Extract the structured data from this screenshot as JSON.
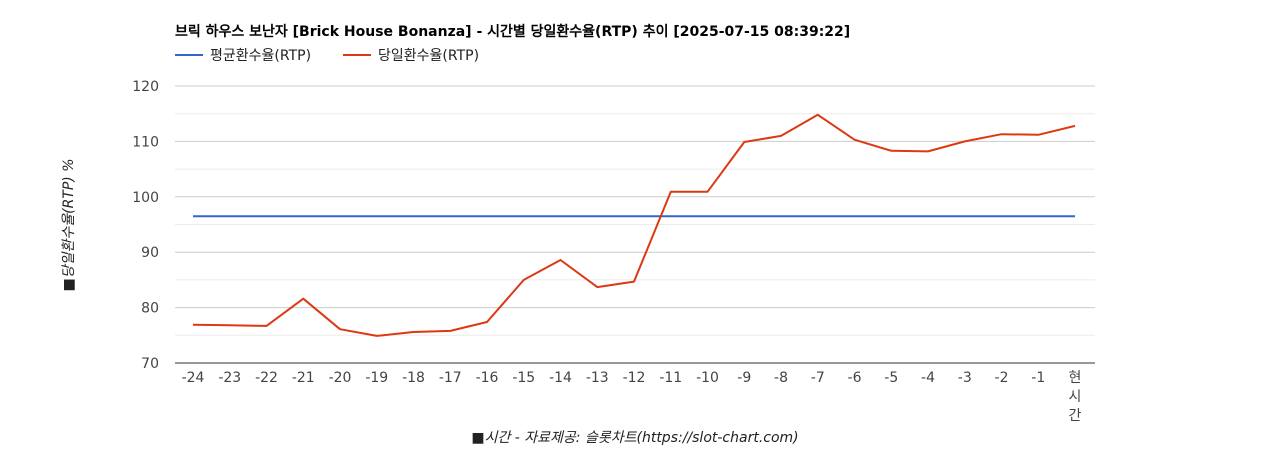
{
  "chart_data": {
    "type": "line",
    "title": "브릭 하우스 보난자 [Brick House Bonanza] - 시간별 당일환수율(RTP) 추이 [2025-07-15 08:39:22]",
    "xlabel": "■시간 - 자료제공: 슬롯차트(https://slot-chart.com)",
    "ylabel": "■당일환수율(RTP) %",
    "categories": [
      "-24",
      "-23",
      "-22",
      "-21",
      "-20",
      "-19",
      "-18",
      "-17",
      "-16",
      "-15",
      "-14",
      "-13",
      "-12",
      "-11",
      "-10",
      "-9",
      "-8",
      "-7",
      "-6",
      "-5",
      "-4",
      "-3",
      "-2",
      "-1",
      "현시간"
    ],
    "ylim": [
      70,
      120
    ],
    "yticks": [
      70,
      80,
      90,
      100,
      110,
      120
    ],
    "legend_position": "top-left",
    "grid": true,
    "series": [
      {
        "name": "평균환수율(RTP)",
        "color": "#3366cc",
        "values": [
          96.5,
          96.5,
          96.5,
          96.5,
          96.5,
          96.5,
          96.5,
          96.5,
          96.5,
          96.5,
          96.5,
          96.5,
          96.5,
          96.5,
          96.5,
          96.5,
          96.5,
          96.5,
          96.5,
          96.5,
          96.5,
          96.5,
          96.5,
          96.5,
          96.5
        ]
      },
      {
        "name": "당일환수율(RTP)",
        "color": "#dc3912",
        "values": [
          76.9,
          76.8,
          76.7,
          81.6,
          76.1,
          74.9,
          75.6,
          75.8,
          77.4,
          85.0,
          88.6,
          83.7,
          84.7,
          100.9,
          100.9,
          109.9,
          111.0,
          114.8,
          110.3,
          108.3,
          108.2,
          110.0,
          111.3,
          111.2,
          112.8
        ]
      }
    ]
  }
}
